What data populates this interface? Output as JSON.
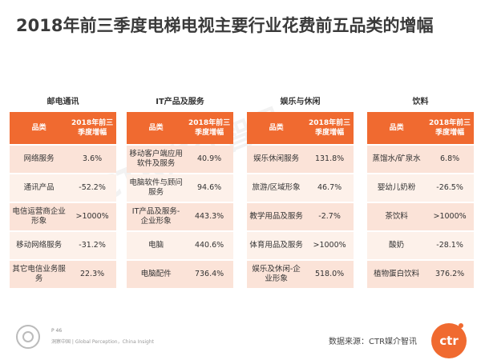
{
  "title": "2018年前三季度电梯电视主要行业花费前五品类的增幅",
  "panels": [
    {
      "name": "邮电通讯",
      "col1": "品类",
      "col2": "2018年前三季度增幅",
      "rows": [
        {
          "category": "网络服务",
          "growth": "3.6%"
        },
        {
          "category": "通讯产品",
          "growth": "-52.2%"
        },
        {
          "category": "电信运营商企业形象",
          "growth": ">1000%"
        },
        {
          "category": "移动网络服务",
          "growth": "-31.2%"
        },
        {
          "category": "其它电信业务服务",
          "growth": "22.3%"
        }
      ]
    },
    {
      "name": "IT产品及服务",
      "col1": "品类",
      "col2": "2018年前三季度增幅",
      "rows": [
        {
          "category": "移动客户端应用软件及服务",
          "growth": "40.9%"
        },
        {
          "category": "电脑软件与顾问服务",
          "growth": "94.6%"
        },
        {
          "category": "IT产品及服务-企业形象",
          "growth": "443.3%"
        },
        {
          "category": "电脑",
          "growth": "440.6%"
        },
        {
          "category": "电脑配件",
          "growth": "736.4%"
        }
      ]
    },
    {
      "name": "娱乐与休闲",
      "col1": "品类",
      "col2": "2018年前三季度增幅",
      "rows": [
        {
          "category": "娱乐休闲服务",
          "growth": "131.8%"
        },
        {
          "category": "旅游/区域形象",
          "growth": "46.7%"
        },
        {
          "category": "教学用品及服务",
          "growth": "-2.7%"
        },
        {
          "category": "体育用品及服务",
          "growth": ">1000%"
        },
        {
          "category": "娱乐及休闲-企业形象",
          "growth": "518.0%"
        }
      ]
    },
    {
      "name": "饮料",
      "col1": "品类",
      "col2": "2018年前三季度增幅",
      "rows": [
        {
          "category": "蒸馏水/矿泉水",
          "growth": "6.8%"
        },
        {
          "category": "婴幼儿奶粉",
          "growth": "-26.5%"
        },
        {
          "category": "茶饮料",
          "growth": ">1000%"
        },
        {
          "category": "酸奶",
          "growth": "-28.1%"
        },
        {
          "category": "植物蛋白饮料",
          "growth": "376.2%"
        }
      ]
    }
  ],
  "watermark": "CTR媒介智讯",
  "footer": {
    "page": "P 46",
    "credit": "洞察中国 | Global Perception，China Insight",
    "source": "数据来源：CTR媒介智讯",
    "logo": "ctr"
  },
  "colors": {
    "accent": "#f06a30",
    "row_odd": "#fbe3d8",
    "row_even": "#fdf1ea"
  }
}
